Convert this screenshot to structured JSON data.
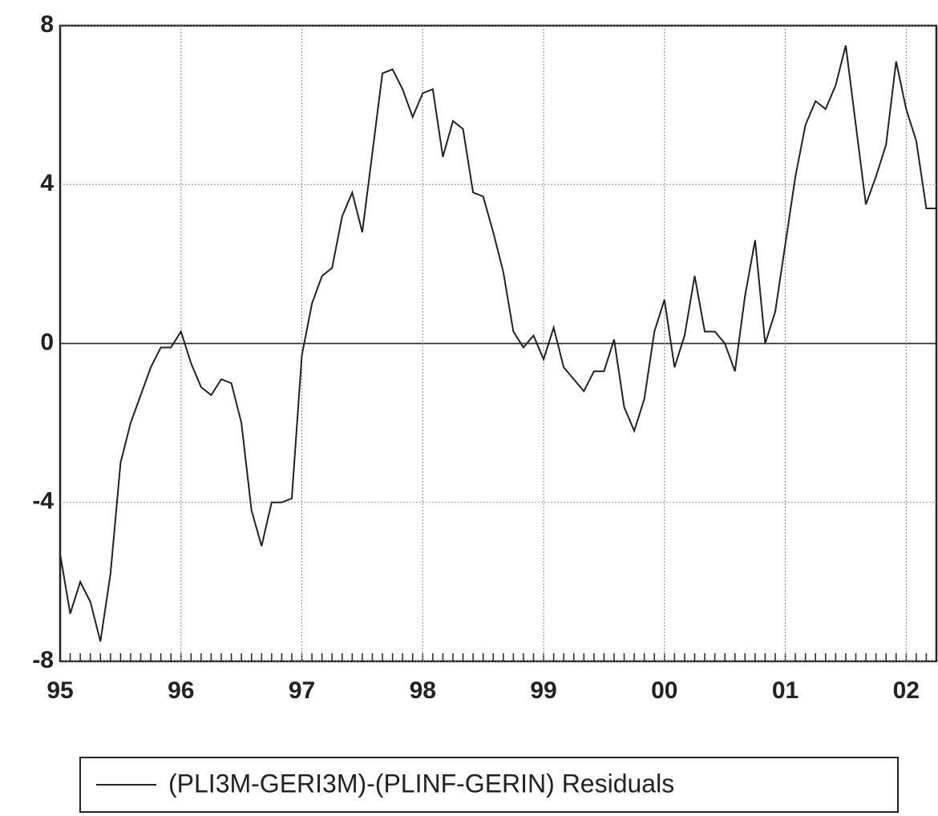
{
  "chart_data": {
    "type": "line",
    "categories": [
      "95",
      null,
      null,
      null,
      null,
      null,
      null,
      null,
      null,
      null,
      null,
      null,
      "96",
      null,
      null,
      null,
      null,
      null,
      null,
      null,
      null,
      null,
      null,
      null,
      "97",
      null,
      null,
      null,
      null,
      null,
      null,
      null,
      null,
      null,
      null,
      null,
      "98",
      null,
      null,
      null,
      null,
      null,
      null,
      null,
      null,
      null,
      null,
      null,
      "99",
      null,
      null,
      null,
      null,
      null,
      null,
      null,
      null,
      null,
      null,
      null,
      "00",
      null,
      null,
      null,
      null,
      null,
      null,
      null,
      null,
      null,
      null,
      null,
      "01",
      null,
      null,
      null,
      null,
      null,
      null,
      null,
      null,
      null,
      null,
      null,
      "02",
      null,
      null,
      null
    ],
    "series": [
      {
        "name": "(PLI3M-GERI3M)-(PLINF-GERIN) Residuals",
        "color": "#222222",
        "values": [
          -5.3,
          -6.8,
          -6.0,
          -6.5,
          -7.5,
          -5.8,
          -3.0,
          -2.0,
          -1.3,
          -0.6,
          -0.1,
          -0.1,
          0.3,
          -0.5,
          -1.1,
          -1.3,
          -0.9,
          -1.0,
          -2.0,
          -4.2,
          -5.1,
          -4.0,
          -4.0,
          -3.9,
          -0.3,
          1.0,
          1.7,
          1.9,
          3.2,
          3.8,
          2.8,
          4.8,
          6.8,
          6.9,
          6.4,
          5.7,
          6.3,
          6.4,
          4.7,
          5.6,
          5.4,
          3.8,
          3.7,
          2.8,
          1.8,
          0.3,
          -0.1,
          0.2,
          -0.4,
          0.4,
          -0.6,
          -0.9,
          -1.2,
          -0.7,
          -0.7,
          0.1,
          -1.6,
          -2.2,
          -1.4,
          0.3,
          1.1,
          -0.6,
          0.2,
          1.7,
          0.3,
          0.3,
          0.0,
          -0.7,
          1.2,
          2.6,
          0.0,
          0.8,
          2.5,
          4.2,
          5.5,
          6.1,
          5.9,
          6.5,
          7.5,
          5.5,
          3.5,
          4.2,
          5.0,
          7.1,
          5.9,
          5.1,
          3.4,
          3.4
        ]
      }
    ],
    "ylim": [
      -8,
      8
    ],
    "yticks": [
      -8,
      -4,
      0,
      4,
      8
    ],
    "grid": true
  }
}
